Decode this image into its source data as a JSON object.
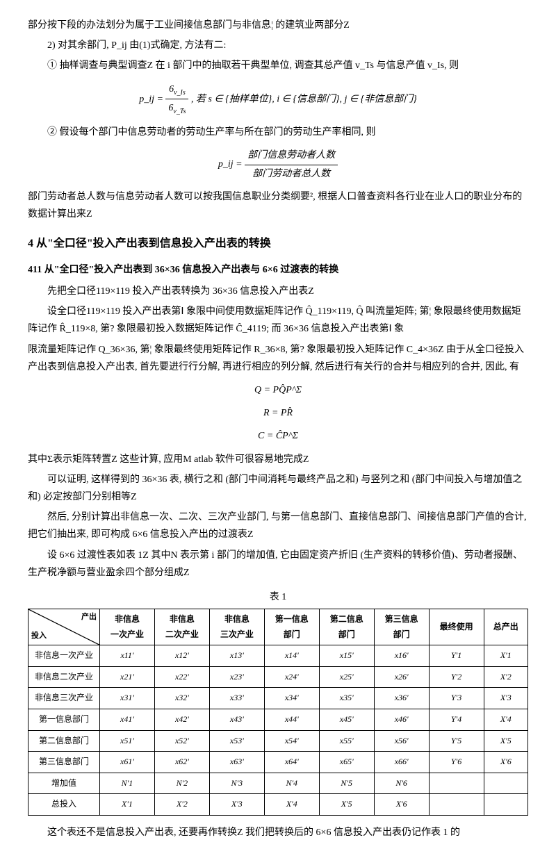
{
  "intro": {
    "p1": "部分按下段的办法划分为属于工业间接信息部门与非信息¦ 的建筑业两部分Z",
    "p2": "2) 对其余部门, P_ij 由(1)式确定, 方法有二:",
    "p3": "① 抽样调查与典型调查Z 在 i 部门中的抽取若干典型单位, 调查其总产值 v_Ts 与信息产值 v_Is, 则",
    "formula1_left": "p_ij =",
    "formula1_num": "6",
    "formula1_den": "6",
    "formula1_rnum": "v_Is",
    "formula1_rden": "v_Ts",
    "formula1_right": ", 若 s ∈ {抽样单位}, i ∈ {信息部门}, j ∈ {非信息部门}",
    "p4": "② 假设每个部门中信息劳动者的劳动生产率与所在部门的劳动生产率相同, 则",
    "formula2_left": "p_ij =",
    "formula2_num": "部门信息劳动者人数",
    "formula2_den": "部门劳动者总人数",
    "p5": "部门劳动者总人数与信息劳动者人数可以按我国信息职业分类纲要², 根据人口普查资料各行业在业人口的职业分布的数据计算出来Z"
  },
  "section4": {
    "title": "4  从\"全口径\"投入产出表到信息投入产出表的转换",
    "sub411": "411  从\"全口径\"投入产出表到 36×36 信息投入产出表与 6×6 过渡表的转换",
    "p1": "先把全口径119×119 投入产出表转换为 36×36 信息投入产出表Z",
    "p2": "设全口径119×119 投入产出表第Ⅰ 象限中间使用数据矩阵记作 Q̂_119×119, Q̂ 叫流量矩阵; 第¦ 象限最终使用数据矩阵记作 R̂_119×8, 第? 象限最初投入数据矩阵记作 Ĉ_4119; 而 36×36 信息投入产出表第Ⅰ 象",
    "p3": "限流量矩阵记作 Q_36×36, 第¦ 象限最终使用矩阵记作 R_36×8, 第? 象限最初投入矩阵记作 C_4×36Z 由于从全口径投入产出表到信息投入产出表, 首先要进行行分解, 再进行相应的列分解, 然后进行有关行的合并与相应列的合并, 因此, 有",
    "formulaQ": "Q = PQ̂P^Σ",
    "formulaR": "R = PR̂",
    "formulaC": "C = ĈP^Σ",
    "p4": "其中Σ表示矩阵转置Z 这些计算, 应用M atlab 软件可很容易地完成Z",
    "p5": "可以证明, 这样得到的 36×36 表, 横行之和 (部门中间消耗与最终产品之和) 与竖列之和 (部门中间投入与增加值之和) 必定按部门分别相等Z",
    "p6": "然后, 分别计算出非信息一次、二次、三次产业部门, 与第一信息部门、直接信息部门、间接信息部门产值的合计, 把它们抽出来, 即可构成 6×6 信息投入产出的过渡表Z",
    "p7": "设 6×6 过渡性表如表 1Z 其中N 表示第 i 部门的增加值, 它由固定资产折旧 (生产资料的转移价值)、劳动者报酬、生产税净额与营业盈余四个部分组成Z"
  },
  "table1": {
    "caption": "表 1",
    "diag_out": "产出",
    "diag_in": "投入",
    "headers": [
      "非信息\n一次产业",
      "非信息\n二次产业",
      "非信息\n三次产业",
      "第一信息\n部门",
      "第二信息\n部门",
      "第三信息\n部门",
      "最终使用",
      "总产出"
    ],
    "rows": [
      {
        "label": "非信息一次产业",
        "cells": [
          "x11'",
          "x12'",
          "x13'",
          "x14'",
          "x15'",
          "x16'",
          "Y'1",
          "X'1"
        ]
      },
      {
        "label": "非信息二次产业",
        "cells": [
          "x21'",
          "x22'",
          "x23'",
          "x24'",
          "x25'",
          "x26'",
          "Y'2",
          "X'2"
        ]
      },
      {
        "label": "非信息三次产业",
        "cells": [
          "x31'",
          "x32'",
          "x33'",
          "x34'",
          "x35'",
          "x36'",
          "Y'3",
          "X'3"
        ]
      },
      {
        "label": "第一信息部门",
        "cells": [
          "x41'",
          "x42'",
          "x43'",
          "x44'",
          "x45'",
          "x46'",
          "Y'4",
          "X'4"
        ]
      },
      {
        "label": "第二信息部门",
        "cells": [
          "x51'",
          "x52'",
          "x53'",
          "x54'",
          "x55'",
          "x56'",
          "Y'5",
          "X'5"
        ]
      },
      {
        "label": "第三信息部门",
        "cells": [
          "x61'",
          "x62'",
          "x63'",
          "x64'",
          "x65'",
          "x66'",
          "Y'6",
          "X'6"
        ]
      },
      {
        "label": "增加值",
        "cells": [
          "N'1",
          "N'2",
          "N'3",
          "N'4",
          "N'5",
          "N'6",
          "",
          ""
        ]
      },
      {
        "label": "总投入",
        "cells": [
          "X'1",
          "X'2",
          "X'3",
          "X'4",
          "X'5",
          "X'6",
          "",
          ""
        ]
      }
    ]
  },
  "footer": {
    "p1": "这个表还不是信息投入产出表, 还要再作转换Z 我们把转换后的 6×6 信息投入产出表仍记作表 1 的"
  }
}
